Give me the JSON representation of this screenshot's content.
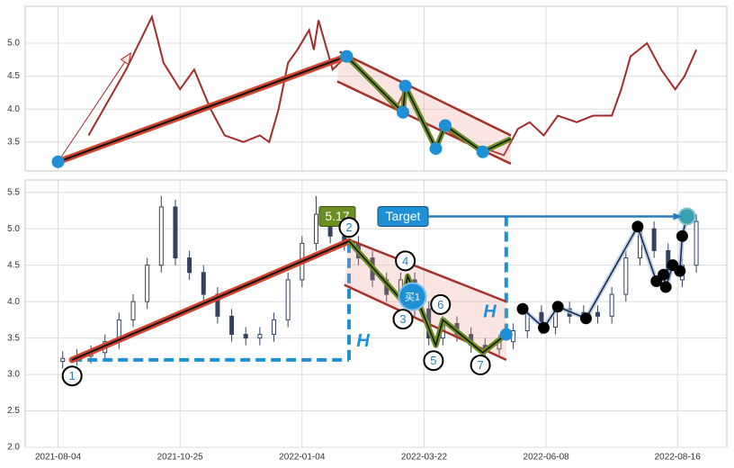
{
  "chart_data": [
    {
      "type": "line",
      "x": [
        13,
        29,
        40,
        45,
        52,
        58,
        65,
        71,
        79,
        86,
        90,
        94,
        98,
        102,
        107,
        109,
        111,
        117,
        123,
        129,
        136,
        144,
        148,
        155,
        161,
        165,
        173,
        182,
        190,
        196,
        201,
        207,
        213,
        221,
        228,
        236,
        240,
        244,
        251,
        257,
        263,
        267,
        272
      ],
      "values": [
        3.6,
        4.6,
        5.4,
        4.7,
        4.3,
        4.6,
        4.0,
        3.6,
        3.5,
        3.6,
        3.5,
        4.0,
        4.7,
        4.9,
        5.2,
        4.9,
        5.35,
        4.6,
        4.8,
        4.6,
        4.3,
        4.0,
        4.3,
        3.8,
        3.4,
        3.7,
        3.5,
        3.4,
        3.3,
        3.7,
        3.8,
        3.6,
        3.9,
        3.8,
        3.9,
        3.9,
        4.3,
        4.8,
        5.0,
        4.6,
        4.3,
        4.5,
        4.9
      ],
      "color": "#a52a2a",
      "xlim": [
        -14,
        285
      ],
      "ylim": [
        3.06,
        5.56
      ],
      "xticks": [
        0,
        52,
        104,
        156,
        208,
        264
      ],
      "yticks": [
        3.5,
        {
          "value": 4.0,
          "label": "4.0"
        },
        4.5,
        {
          "value": 5.0,
          "label": "5.0"
        }
      ],
      "grid": true,
      "trend": {
        "x": [
          0,
          123
        ],
        "y": [
          3.2,
          4.8
        ]
      },
      "channel_upper": {
        "x": [
          120,
          193
        ],
        "y": [
          4.87,
          3.6
        ]
      },
      "channel_lower": {
        "x": [
          119,
          193
        ],
        "y": [
          4.42,
          3.17
        ]
      },
      "zigzag": {
        "x": [
          123,
          147,
          148,
          161,
          165,
          181,
          193
        ],
        "y": [
          4.8,
          3.95,
          4.35,
          3.4,
          3.75,
          3.35,
          3.55
        ]
      },
      "dots": {
        "x": [
          0,
          123,
          148,
          147,
          161,
          165,
          181
        ],
        "y": [
          3.2,
          4.8,
          4.35,
          3.95,
          3.4,
          3.75,
          3.35
        ]
      },
      "arrow": {
        "x": [
          0,
          31
        ],
        "y": [
          3.2,
          4.85
        ]
      }
    },
    {
      "type": "candlestick",
      "x": [
        2,
        8,
        14,
        20,
        26,
        32,
        38,
        44,
        50,
        56,
        62,
        68,
        74,
        80,
        86,
        92,
        98,
        104,
        110,
        116,
        122,
        128,
        134,
        140,
        146,
        152,
        158,
        164,
        170,
        176,
        182,
        188,
        194,
        200,
        206,
        212,
        218,
        224,
        230,
        236,
        242,
        248,
        254,
        260,
        266,
        272
      ],
      "open": [
        3.18,
        3.22,
        3.25,
        3.3,
        3.45,
        3.75,
        4.0,
        4.5,
        5.3,
        4.6,
        4.4,
        4.1,
        3.8,
        3.55,
        3.5,
        3.55,
        3.75,
        4.3,
        4.8,
        5.2,
        4.9,
        4.8,
        4.6,
        4.3,
        4.1,
        4.3,
        3.9,
        3.5,
        3.7,
        3.55,
        3.4,
        3.35,
        3.45,
        3.6,
        3.85,
        3.65,
        3.9,
        3.8,
        3.85,
        3.8,
        4.1,
        4.6,
        5.0,
        4.7,
        4.3,
        4.5
      ],
      "high": [
        3.32,
        3.35,
        3.4,
        3.55,
        3.85,
        4.1,
        4.6,
        5.45,
        5.4,
        4.7,
        4.5,
        4.2,
        3.9,
        3.65,
        3.65,
        3.85,
        4.4,
        4.9,
        5.45,
        5.3,
        5.0,
        4.9,
        4.7,
        4.4,
        4.4,
        4.4,
        4.0,
        3.8,
        3.8,
        3.65,
        3.5,
        3.55,
        3.7,
        3.95,
        3.95,
        4.0,
        4.0,
        3.95,
        3.95,
        4.2,
        4.7,
        5.1,
        5.1,
        4.8,
        4.6,
        5.2
      ],
      "low": [
        3.08,
        3.12,
        3.15,
        3.2,
        3.35,
        3.65,
        3.9,
        4.4,
        4.5,
        4.3,
        4.0,
        3.7,
        3.45,
        3.4,
        3.4,
        3.45,
        3.65,
        4.2,
        4.7,
        4.8,
        4.7,
        4.5,
        4.2,
        4.0,
        4.0,
        3.8,
        3.4,
        3.4,
        3.45,
        3.3,
        3.25,
        3.25,
        3.35,
        3.5,
        3.55,
        3.55,
        3.7,
        3.7,
        3.7,
        3.7,
        4.0,
        4.5,
        4.6,
        4.2,
        4.2,
        4.4
      ],
      "close": [
        3.22,
        3.25,
        3.3,
        3.45,
        3.75,
        4.0,
        4.5,
        5.3,
        4.6,
        4.4,
        4.1,
        3.8,
        3.55,
        3.5,
        3.55,
        3.75,
        4.3,
        4.8,
        5.2,
        4.9,
        4.8,
        4.6,
        4.3,
        4.1,
        4.3,
        3.9,
        3.5,
        3.7,
        3.55,
        3.4,
        3.35,
        3.45,
        3.6,
        3.85,
        3.65,
        3.9,
        3.8,
        3.85,
        3.8,
        4.1,
        4.6,
        5.0,
        4.7,
        4.3,
        4.5,
        5.1
      ],
      "color": "#34425e",
      "xlim": [
        -14,
        285
      ],
      "ylim": [
        2.0,
        5.67
      ],
      "xticks": [
        {
          "value": 0,
          "label": "2021-08-04"
        },
        {
          "value": 52,
          "label": "2021-10-25"
        },
        {
          "value": 104,
          "label": "2022-01-04"
        },
        {
          "value": 156,
          "label": "2022-03-22"
        },
        {
          "value": 208,
          "label": "2022-06-08"
        },
        {
          "value": 264,
          "label": "2022-08-16"
        }
      ],
      "yticks": [
        {
          "value": 2.0,
          "label": "2.0"
        },
        2.5,
        {
          "value": 3.0,
          "label": "3.0"
        },
        3.5,
        {
          "value": 4.0,
          "label": "4.0"
        },
        4.5,
        {
          "value": 5.0,
          "label": "5.0"
        },
        5.5
      ],
      "grid": true,
      "trend": {
        "x": [
          6,
          124
        ],
        "y": [
          3.2,
          4.83
        ]
      },
      "channel_upper": {
        "x": [
          124,
          191
        ],
        "y": [
          4.85,
          4.0
        ]
      },
      "channel_lower": {
        "x": [
          122,
          191
        ],
        "y": [
          4.23,
          3.2
        ]
      },
      "zigzag": {
        "x": [
          124,
          147,
          149,
          161,
          164,
          181,
          191
        ],
        "y": [
          4.83,
          4.0,
          4.35,
          3.4,
          3.75,
          3.3,
          3.55
        ]
      },
      "points": [
        {
          "label": "1",
          "x": 6,
          "y": 2.98
        },
        {
          "label": "2",
          "x": 124,
          "y": 5.02
        },
        {
          "label": "3",
          "x": 147,
          "y": 3.76
        },
        {
          "label": "4",
          "x": 148,
          "y": 4.56
        },
        {
          "label": "5",
          "x": 160,
          "y": 3.19
        },
        {
          "label": "6",
          "x": 163,
          "y": 3.96
        },
        {
          "label": "7",
          "x": 180,
          "y": 3.13
        }
      ],
      "buy": {
        "label": "买1",
        "x": 151,
        "y": 4.07
      },
      "break_dot": {
        "x": 191,
        "y": 3.55
      },
      "forecast": {
        "x": [
          198,
          207,
          213,
          225,
          247,
          255,
          258,
          259,
          262,
          265,
          266,
          268
        ],
        "y": [
          3.9,
          3.64,
          3.93,
          3.77,
          5.03,
          4.28,
          4.37,
          4.2,
          4.5,
          4.42,
          4.9,
          5.17
        ]
      },
      "target": {
        "label": "Target",
        "value": 5.17,
        "x": 147,
        "label_x": 119,
        "arrow_x": [
          158,
          266
        ]
      },
      "height_line": {
        "x": [
          6,
          124
        ],
        "y": [
          3.2,
          4.83
        ]
      },
      "projection_line": {
        "x": 191,
        "y": [
          5.17,
          3.55
        ]
      },
      "h_labels": [
        {
          "text": "H",
          "x": 130,
          "y": 3.45
        },
        {
          "text": "H",
          "x": 184,
          "y": 3.85
        }
      ]
    }
  ]
}
